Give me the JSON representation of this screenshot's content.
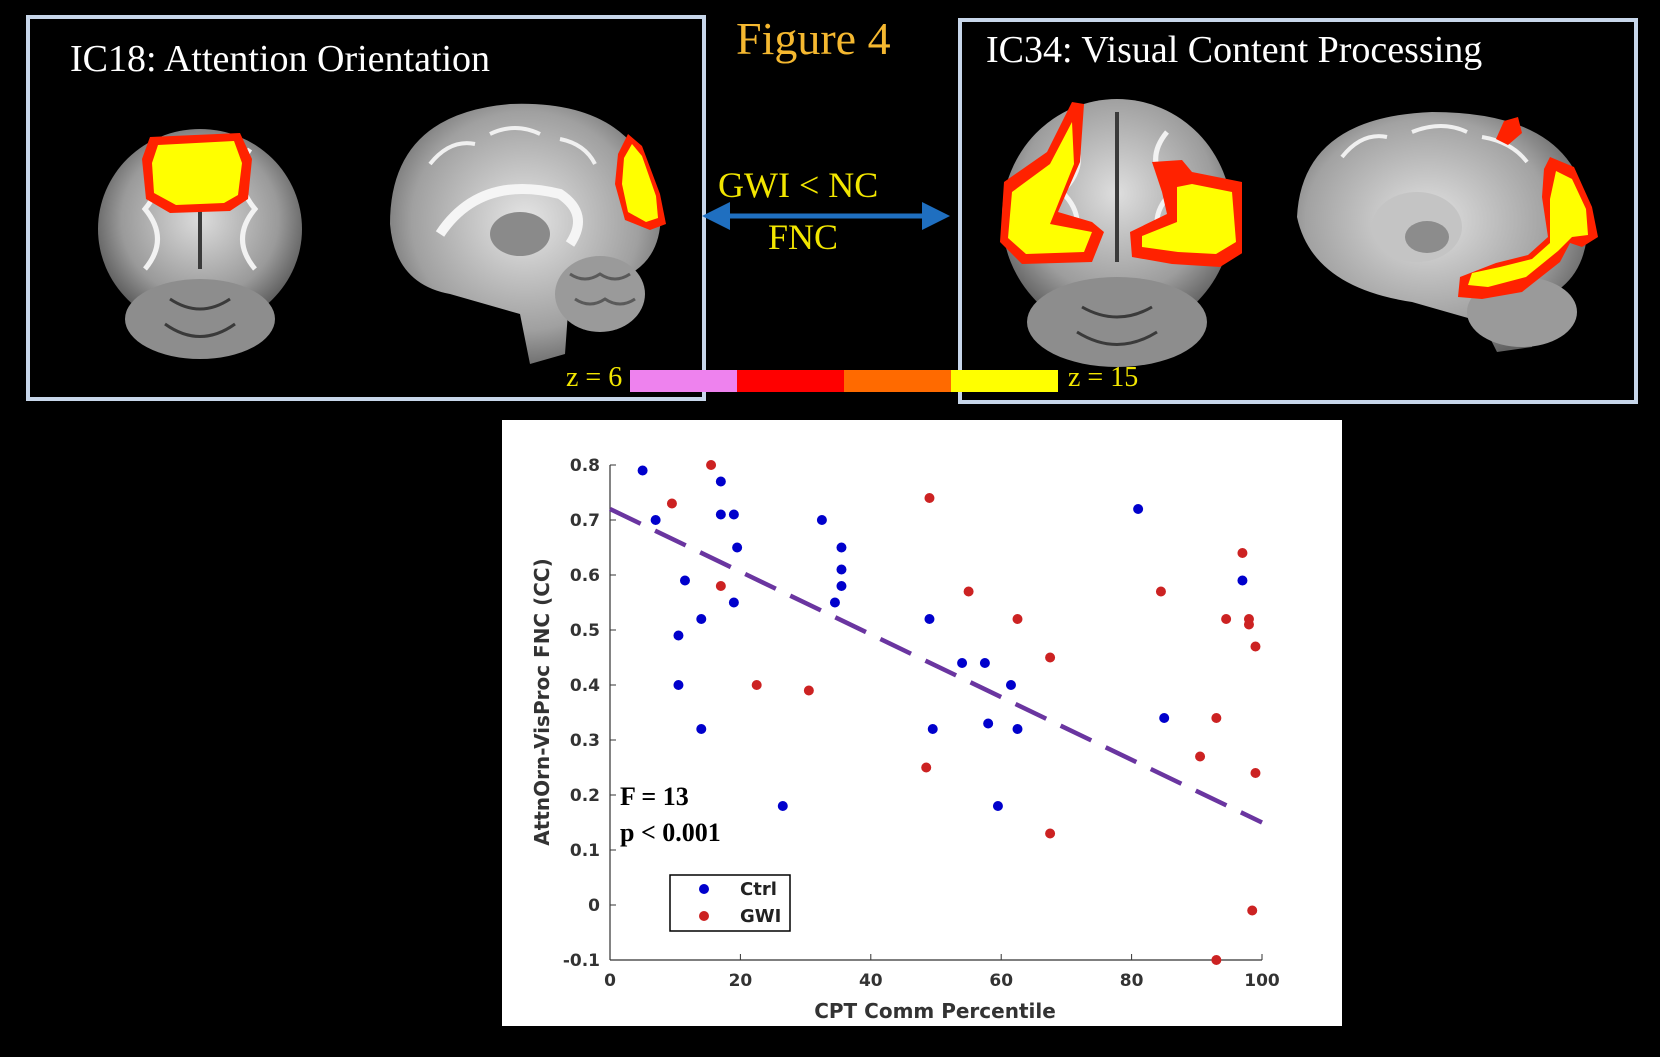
{
  "figure_title": "Figure 4",
  "left_panel": {
    "title": "IC18: Attention Orientation"
  },
  "right_panel": {
    "title": "IC34: Visual Content Processing"
  },
  "connection": {
    "line1": "GWI < NC",
    "line2": "FNC",
    "arrow_color": "#1f6fc0"
  },
  "colorbar": {
    "low_label": "z = 6",
    "high_label": "z = 15",
    "colors": [
      "#ee82ee",
      "#ff0000",
      "#ff6a00",
      "#ffff00"
    ]
  },
  "chart_data": {
    "type": "scatter",
    "xlabel": "CPT Comm Percentile",
    "ylabel": "AttnOrn-VisProc FNC (CC)",
    "xlim": [
      0,
      100
    ],
    "ylim": [
      -0.1,
      0.8
    ],
    "xticks": [
      "0",
      "20",
      "40",
      "60",
      "80",
      "100"
    ],
    "yticks": [
      "-0.1",
      "0",
      "0.1",
      "0.2",
      "0.3",
      "0.4",
      "0.5",
      "0.6",
      "0.7",
      "0.8"
    ],
    "legend": {
      "placement": "bottom-left"
    },
    "annotations": [
      "F = 13",
      "p < 0.001"
    ],
    "fit_line": {
      "style": "dashed",
      "color": "#6a35a0",
      "points": [
        [
          0,
          0.72
        ],
        [
          100,
          0.15
        ]
      ]
    },
    "series": [
      {
        "name": "Ctrl",
        "color": "#0000cc",
        "points": [
          [
            5,
            0.79
          ],
          [
            7,
            0.7
          ],
          [
            10.5,
            0.49
          ],
          [
            10.5,
            0.4
          ],
          [
            11.5,
            0.59
          ],
          [
            14,
            0.52
          ],
          [
            14,
            0.32
          ],
          [
            17,
            0.77
          ],
          [
            17,
            0.71
          ],
          [
            19,
            0.71
          ],
          [
            19.5,
            0.65
          ],
          [
            19,
            0.55
          ],
          [
            26.5,
            0.18
          ],
          [
            32.5,
            0.7
          ],
          [
            34.5,
            0.55
          ],
          [
            35.5,
            0.65
          ],
          [
            35.5,
            0.61
          ],
          [
            35.5,
            0.58
          ],
          [
            49,
            0.52
          ],
          [
            49.5,
            0.32
          ],
          [
            54,
            0.44
          ],
          [
            57.5,
            0.44
          ],
          [
            58,
            0.33
          ],
          [
            59.5,
            0.18
          ],
          [
            61.5,
            0.4
          ],
          [
            62.5,
            0.32
          ],
          [
            81,
            0.72
          ],
          [
            85,
            0.34
          ],
          [
            97,
            0.59
          ]
        ]
      },
      {
        "name": "GWI",
        "color": "#cc2222",
        "points": [
          [
            9.5,
            0.73
          ],
          [
            15.5,
            0.8
          ],
          [
            17,
            0.58
          ],
          [
            22.5,
            0.4
          ],
          [
            30.5,
            0.39
          ],
          [
            48.5,
            0.25
          ],
          [
            49,
            0.74
          ],
          [
            55,
            0.57
          ],
          [
            62.5,
            0.52
          ],
          [
            67.5,
            0.45
          ],
          [
            67.5,
            0.13
          ],
          [
            84.5,
            0.57
          ],
          [
            90.5,
            0.27
          ],
          [
            93,
            0.34
          ],
          [
            93,
            -0.1
          ],
          [
            94.5,
            0.52
          ],
          [
            97,
            0.64
          ],
          [
            98,
            0.52
          ],
          [
            98,
            0.51
          ],
          [
            98.5,
            -0.01
          ],
          [
            99,
            0.47
          ],
          [
            99,
            0.24
          ]
        ]
      }
    ]
  }
}
